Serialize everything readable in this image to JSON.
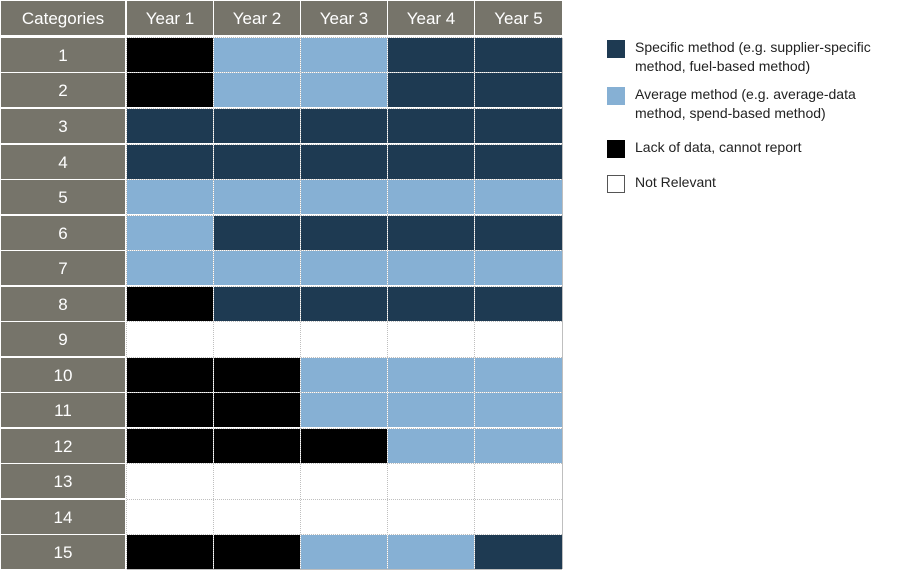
{
  "chart_data": {
    "type": "table",
    "columns": [
      "Categories",
      "Year 1",
      "Year 2",
      "Year 3",
      "Year 4",
      "Year 5"
    ],
    "rows": [
      {
        "category": "1",
        "values": [
          "lack",
          "average",
          "average",
          "specific",
          "specific"
        ]
      },
      {
        "category": "2",
        "values": [
          "lack",
          "average",
          "average",
          "specific",
          "specific"
        ]
      },
      {
        "category": "3",
        "values": [
          "specific",
          "specific",
          "specific",
          "specific",
          "specific"
        ]
      },
      {
        "category": "4",
        "values": [
          "specific",
          "specific",
          "specific",
          "specific",
          "specific"
        ]
      },
      {
        "category": "5",
        "values": [
          "average",
          "average",
          "average",
          "average",
          "average"
        ]
      },
      {
        "category": "6",
        "values": [
          "average",
          "specific",
          "specific",
          "specific",
          "specific"
        ]
      },
      {
        "category": "7",
        "values": [
          "average",
          "average",
          "average",
          "average",
          "average"
        ]
      },
      {
        "category": "8",
        "values": [
          "lack",
          "specific",
          "specific",
          "specific",
          "specific"
        ]
      },
      {
        "category": "9",
        "values": [
          "not_relevant",
          "not_relevant",
          "not_relevant",
          "not_relevant",
          "not_relevant"
        ]
      },
      {
        "category": "10",
        "values": [
          "lack",
          "lack",
          "average",
          "average",
          "average"
        ]
      },
      {
        "category": "11",
        "values": [
          "lack",
          "lack",
          "average",
          "average",
          "average"
        ]
      },
      {
        "category": "12",
        "values": [
          "lack",
          "lack",
          "lack",
          "average",
          "average"
        ]
      },
      {
        "category": "13",
        "values": [
          "not_relevant",
          "not_relevant",
          "not_relevant",
          "not_relevant",
          "not_relevant"
        ]
      },
      {
        "category": "14",
        "values": [
          "not_relevant",
          "not_relevant",
          "not_relevant",
          "not_relevant",
          "not_relevant"
        ]
      },
      {
        "category": "15",
        "values": [
          "lack",
          "lack",
          "average",
          "average",
          "specific"
        ]
      }
    ],
    "legend": [
      {
        "key": "specific",
        "label": "Specific method (e.g. supplier-specific method, fuel-based method)"
      },
      {
        "key": "average",
        "label": "Average method (e.g. average-data method, spend-based method)"
      },
      {
        "key": "lack",
        "label": "Lack of data, cannot report"
      },
      {
        "key": "not_relevant",
        "label": "Not Relevant"
      }
    ],
    "legend_position": "right",
    "colors": {
      "header_bg": "#76746a",
      "header_text": "#ffffff",
      "specific": "#1e3a52",
      "average": "#86b0d4",
      "lack": "#000000",
      "not_relevant": "#ffffff",
      "gridline": "#bfbfbf"
    }
  }
}
